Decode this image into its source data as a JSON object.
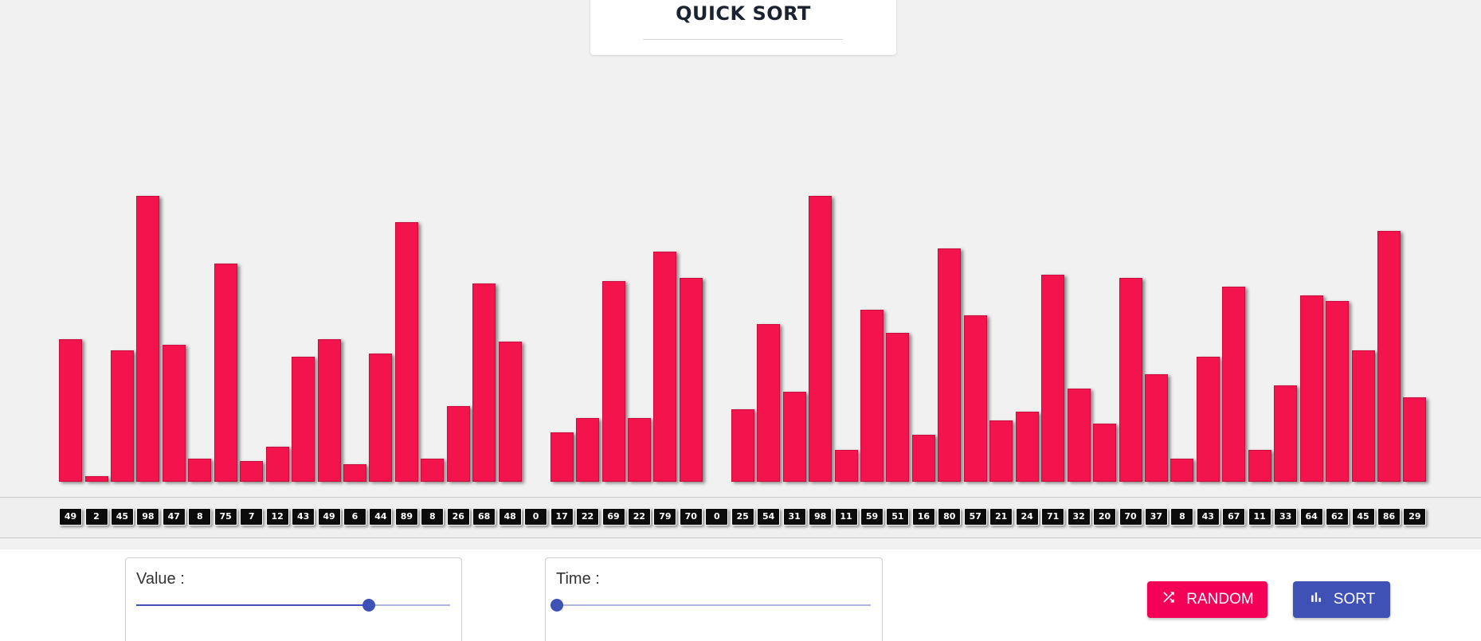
{
  "header": {
    "title": "QUICK SORT"
  },
  "colors": {
    "bar": "#f3134d",
    "bar_border": "#c90c3d",
    "chip_bg": "#0b0b0b",
    "accent": "#3f51b5",
    "random_button": "#f50057",
    "sort_button": "#3f51b5"
  },
  "array": {
    "values": [
      49,
      2,
      45,
      98,
      47,
      8,
      75,
      7,
      12,
      43,
      49,
      6,
      44,
      89,
      8,
      26,
      68,
      48,
      0,
      17,
      22,
      69,
      22,
      79,
      70,
      0,
      25,
      54,
      31,
      98,
      11,
      59,
      51,
      16,
      80,
      57,
      21,
      24,
      71,
      32,
      20,
      70,
      37,
      8,
      43,
      67,
      11,
      33,
      64,
      62,
      45,
      86,
      29
    ],
    "labels": [
      "49",
      "2",
      "45",
      "98",
      "47",
      "8",
      "75",
      "7",
      "12",
      "43",
      "49",
      "6",
      "44",
      "89",
      "8",
      "26",
      "68",
      "48",
      "0",
      "17",
      "22",
      "69",
      "22",
      "79",
      "70",
      "0",
      "25",
      "54",
      "31",
      "98",
      "11",
      "59",
      "51",
      "16",
      "80",
      "57",
      "21",
      "24",
      "71",
      "32",
      "20",
      "70",
      "37",
      "8",
      "43",
      "67",
      "11",
      "33",
      "64",
      "62",
      "45",
      "86",
      "29"
    ]
  },
  "controls": {
    "value_slider": {
      "label": "Value :",
      "level": 0.74
    },
    "time_slider": {
      "label": "Time :",
      "level": 0.0
    },
    "random_button": {
      "label": "RANDOM",
      "icon": "shuffle-icon"
    },
    "sort_button": {
      "label": "SORT",
      "icon": "bar-chart-icon"
    }
  }
}
